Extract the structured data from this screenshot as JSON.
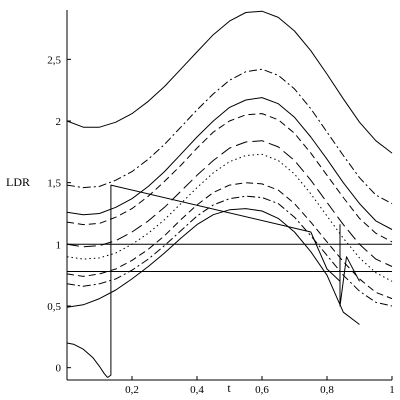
{
  "chart_data": {
    "type": "line",
    "title": "",
    "xlabel": "t",
    "ylabel": "LDR",
    "xlim": [
      0,
      1
    ],
    "ylim": [
      -0.1,
      2.9
    ],
    "grid": false,
    "legend": "none",
    "x_ticks": [
      {
        "v": 0.2,
        "label": "0,2"
      },
      {
        "v": 0.4,
        "label": "0,4"
      },
      {
        "v": 0.6,
        "label": "0,6"
      },
      {
        "v": 0.8,
        "label": "0,8"
      },
      {
        "v": 1.0,
        "label": "1"
      }
    ],
    "y_ticks": [
      {
        "v": 0,
        "label": "0"
      },
      {
        "v": 0.5,
        "label": "0,5"
      },
      {
        "v": 1.0,
        "label": "1"
      },
      {
        "v": 1.5,
        "label": "1,5"
      },
      {
        "v": 2.0,
        "label": "2"
      },
      {
        "v": 2.5,
        "label": "2,5"
      }
    ],
    "series": [
      {
        "style": "solid",
        "x": [
          0,
          0.05,
          0.1,
          0.15,
          0.2,
          0.25,
          0.3,
          0.35,
          0.4,
          0.45,
          0.5,
          0.55,
          0.6,
          0.65,
          0.7,
          0.75,
          0.8,
          0.85,
          0.9,
          0.95,
          1.0
        ],
        "y": [
          2.0,
          1.95,
          1.95,
          1.99,
          2.06,
          2.16,
          2.28,
          2.42,
          2.56,
          2.7,
          2.81,
          2.88,
          2.89,
          2.84,
          2.73,
          2.57,
          2.38,
          2.18,
          1.99,
          1.84,
          1.74
        ]
      },
      {
        "style": "dashdot",
        "x": [
          0,
          0.05,
          0.1,
          0.15,
          0.2,
          0.25,
          0.3,
          0.35,
          0.4,
          0.45,
          0.5,
          0.55,
          0.6,
          0.65,
          0.7,
          0.75,
          0.8,
          0.85,
          0.9,
          0.95,
          1.0
        ],
        "y": [
          1.48,
          1.46,
          1.47,
          1.52,
          1.59,
          1.69,
          1.81,
          1.95,
          2.09,
          2.22,
          2.33,
          2.4,
          2.42,
          2.37,
          2.26,
          2.1,
          1.91,
          1.72,
          1.54,
          1.4,
          1.33
        ]
      },
      {
        "style": "solid",
        "x": [
          0,
          0.05,
          0.1,
          0.15,
          0.2,
          0.25,
          0.3,
          0.35,
          0.4,
          0.45,
          0.5,
          0.55,
          0.6,
          0.65,
          0.7,
          0.75,
          0.8,
          0.85,
          0.9,
          0.95,
          1.0
        ],
        "y": [
          1.26,
          1.24,
          1.25,
          1.3,
          1.37,
          1.47,
          1.59,
          1.73,
          1.87,
          2.0,
          2.11,
          2.17,
          2.19,
          2.14,
          2.03,
          1.87,
          1.69,
          1.5,
          1.33,
          1.19,
          1.12
        ]
      },
      {
        "style": "dashed",
        "x": [
          0,
          0.05,
          0.1,
          0.15,
          0.2,
          0.25,
          0.3,
          0.35,
          0.4,
          0.45,
          0.5,
          0.55,
          0.6,
          0.65,
          0.7,
          0.75,
          0.8,
          0.85,
          0.9,
          0.95,
          1.0
        ],
        "y": [
          1.18,
          1.16,
          1.17,
          1.22,
          1.29,
          1.39,
          1.51,
          1.64,
          1.78,
          1.91,
          2.0,
          2.05,
          2.06,
          2.01,
          1.9,
          1.74,
          1.56,
          1.38,
          1.21,
          1.09,
          1.02
        ]
      },
      {
        "style": "longdash",
        "x": [
          0,
          0.05,
          0.1,
          0.15,
          0.2,
          0.25,
          0.3,
          0.35,
          0.4,
          0.45,
          0.5,
          0.55,
          0.6,
          0.65,
          0.7,
          0.75,
          0.8,
          0.85,
          0.9,
          0.95,
          1.0
        ],
        "y": [
          1.0,
          0.98,
          0.99,
          1.03,
          1.1,
          1.19,
          1.3,
          1.43,
          1.56,
          1.68,
          1.78,
          1.83,
          1.84,
          1.79,
          1.68,
          1.52,
          1.34,
          1.16,
          1.0,
          0.88,
          0.82
        ]
      },
      {
        "style": "dotted",
        "x": [
          0,
          0.05,
          0.1,
          0.15,
          0.2,
          0.25,
          0.3,
          0.35,
          0.4,
          0.45,
          0.5,
          0.55,
          0.6,
          0.65,
          0.7,
          0.75,
          0.8,
          0.85,
          0.9,
          0.95,
          1.0
        ],
        "y": [
          0.9,
          0.88,
          0.89,
          0.93,
          1.0,
          1.09,
          1.2,
          1.33,
          1.46,
          1.58,
          1.67,
          1.72,
          1.73,
          1.68,
          1.57,
          1.41,
          1.23,
          1.05,
          0.89,
          0.77,
          0.7
        ]
      },
      {
        "style": "dashed",
        "x": [
          0,
          0.05,
          0.1,
          0.15,
          0.2,
          0.25,
          0.3,
          0.35,
          0.4,
          0.45,
          0.5,
          0.55,
          0.6,
          0.65,
          0.7,
          0.75,
          0.8,
          0.85,
          0.9,
          0.95,
          1.0
        ],
        "y": [
          0.76,
          0.74,
          0.76,
          0.8,
          0.87,
          0.96,
          1.07,
          1.2,
          1.32,
          1.42,
          1.48,
          1.5,
          1.49,
          1.44,
          1.33,
          1.18,
          1.02,
          0.86,
          0.72,
          0.61,
          0.56
        ]
      },
      {
        "style": "dashdot",
        "x": [
          0,
          0.05,
          0.1,
          0.15,
          0.2,
          0.25,
          0.3,
          0.35,
          0.4,
          0.45,
          0.5,
          0.55,
          0.6,
          0.65,
          0.7,
          0.75,
          0.8,
          0.85,
          0.9,
          0.95,
          1.0
        ],
        "y": [
          0.68,
          0.66,
          0.68,
          0.72,
          0.79,
          0.88,
          0.99,
          1.11,
          1.23,
          1.32,
          1.37,
          1.39,
          1.38,
          1.33,
          1.22,
          1.07,
          0.91,
          0.75,
          0.62,
          0.53,
          0.5
        ]
      },
      {
        "style": "solid",
        "x": [
          0,
          0.05,
          0.1,
          0.15,
          0.2,
          0.25,
          0.3,
          0.35,
          0.4,
          0.45,
          0.5,
          0.55,
          0.6,
          0.65,
          0.7,
          0.75,
          0.8,
          0.85,
          0.9
        ],
        "y": [
          0.49,
          0.51,
          0.56,
          0.63,
          0.72,
          0.82,
          0.93,
          1.05,
          1.16,
          1.24,
          1.28,
          1.29,
          1.27,
          1.21,
          1.1,
          0.94,
          0.75,
          0.45,
          0.35
        ]
      },
      {
        "style": "solid",
        "x": [
          0.125,
          0.135,
          0.135,
          0.135,
          0.75,
          0.8,
          0.84,
          0.84,
          0.84,
          0.86,
          0.9
        ],
        "y": [
          -0.08,
          -0.06,
          1.48,
          1.48,
          1.1,
          0.8,
          0.7,
          1.16,
          0.5,
          0.9,
          0.7
        ]
      },
      {
        "style": "solid",
        "x": [
          0,
          0.02,
          0.05,
          0.08,
          0.1,
          0.115,
          0.125
        ],
        "y": [
          0.2,
          0.19,
          0.15,
          0.08,
          0.01,
          -0.05,
          -0.08
        ]
      },
      {
        "style": "solid",
        "x": [
          0,
          1.0
        ],
        "y": [
          1.0,
          1.0
        ]
      },
      {
        "style": "solid",
        "x": [
          0,
          1.0
        ],
        "y": [
          0.78,
          0.78
        ]
      }
    ]
  }
}
